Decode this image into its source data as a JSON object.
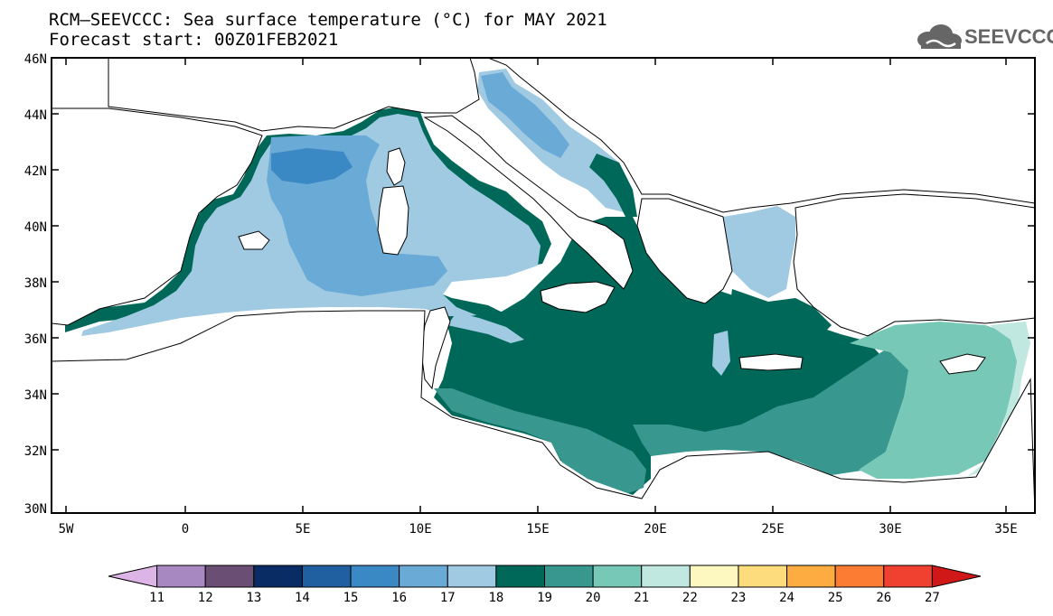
{
  "title": "RCM–SEEVCCC: Sea surface temperature (°C) for MAY 2021",
  "subtitle": "Forecast start: 00Z01FEB2021",
  "logo": {
    "text": "SEEVCCC",
    "icon": "cloud-logo-icon"
  },
  "lat_labels": [
    "46N",
    "44N",
    "42N",
    "40N",
    "38N",
    "36N",
    "34N",
    "32N",
    "30N"
  ],
  "lon_labels": [
    "5W",
    "0",
    "5E",
    "10E",
    "15E",
    "20E",
    "25E",
    "30E",
    "35E"
  ],
  "colorbar": {
    "levels": [
      "11",
      "12",
      "13",
      "14",
      "15",
      "16",
      "17",
      "18",
      "19",
      "20",
      "21",
      "22",
      "23",
      "24",
      "25",
      "26",
      "27"
    ],
    "colors": [
      "#dcb4e6",
      "#a888c0",
      "#6a4e74",
      "#0a2c64",
      "#2060a0",
      "#3a88c4",
      "#6aaad6",
      "#a0cae2",
      "#006858",
      "#389890",
      "#78c8b8",
      "#c0e8e0",
      "#fcf8c0",
      "#fcdc7c",
      "#fcac40",
      "#fc7c34",
      "#f04030",
      "#d01818"
    ]
  },
  "map_colors": {
    "c17": "#a0cae2",
    "c16": "#6aaad6",
    "c15": "#3a88c4",
    "c19": "#006858",
    "c20": "#389890",
    "c21": "#78c8b8",
    "c22": "#c0e8e0"
  }
}
